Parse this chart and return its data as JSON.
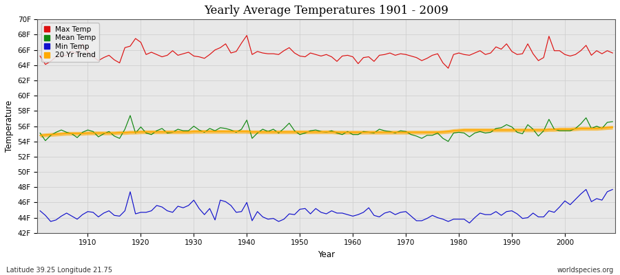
{
  "title": "Yearly Average Temperatures 1901 - 2009",
  "xlabel": "Year",
  "ylabel": "Temperature",
  "lat_lon_label": "Latitude 39.25 Longitude 21.75",
  "source_label": "worldspecies.org",
  "start_year": 1901,
  "end_year": 2009,
  "ylim": [
    42,
    70
  ],
  "yticks": [
    42,
    44,
    46,
    48,
    50,
    52,
    54,
    56,
    58,
    60,
    62,
    64,
    66,
    68,
    70
  ],
  "ytick_labels": [
    "42F",
    "44F",
    "46F",
    "48F",
    "50F",
    "52F",
    "54F",
    "56F",
    "58F",
    "60F",
    "62F",
    "64F",
    "66F",
    "68F",
    "70F"
  ],
  "xticks": [
    1910,
    1920,
    1930,
    1940,
    1950,
    1960,
    1970,
    1980,
    1990,
    2000
  ],
  "plot_bg_color": "#e8e8e8",
  "fig_bg_color": "#ffffff",
  "max_temp_color": "#dd1111",
  "mean_temp_color": "#118811",
  "min_temp_color": "#1111cc",
  "trend_color": "#ffaa00",
  "legend_labels": [
    "Max Temp",
    "Mean Temp",
    "Min Temp",
    "20 Yr Trend"
  ],
  "max_temp": [
    65.2,
    64.1,
    64.5,
    65.1,
    65.2,
    65.3,
    65.8,
    65.5,
    66.8,
    65.7,
    65.1,
    64.6,
    65.0,
    65.3,
    64.7,
    64.3,
    66.3,
    66.5,
    67.5,
    67.0,
    65.4,
    65.7,
    65.4,
    65.1,
    65.3,
    65.9,
    65.3,
    65.5,
    65.7,
    65.2,
    65.1,
    64.9,
    65.4,
    66.0,
    66.3,
    66.8,
    65.6,
    65.8,
    66.9,
    67.9,
    65.4,
    65.8,
    65.6,
    65.5,
    65.5,
    65.4,
    65.9,
    66.3,
    65.6,
    65.2,
    65.1,
    65.6,
    65.4,
    65.2,
    65.4,
    65.1,
    64.5,
    65.2,
    65.3,
    65.1,
    64.2,
    65.0,
    65.1,
    64.5,
    65.3,
    65.4,
    65.6,
    65.3,
    65.5,
    65.4,
    65.2,
    65.0,
    64.6,
    64.9,
    65.3,
    65.5,
    64.3,
    63.6,
    65.4,
    65.6,
    65.4,
    65.3,
    65.6,
    65.9,
    65.4,
    65.6,
    66.4,
    66.1,
    66.8,
    65.8,
    65.4,
    65.5,
    66.8,
    65.5,
    64.6,
    65.0,
    67.8,
    65.9,
    65.9,
    65.4,
    65.2,
    65.4,
    65.9,
    66.6,
    65.3,
    65.9,
    65.5,
    65.9,
    65.6
  ],
  "mean_temp": [
    55.1,
    54.1,
    54.8,
    55.2,
    55.5,
    55.2,
    55.0,
    54.5,
    55.2,
    55.5,
    55.3,
    54.6,
    55.0,
    55.3,
    54.7,
    54.4,
    55.6,
    57.4,
    55.1,
    55.9,
    55.1,
    54.9,
    55.4,
    55.7,
    55.1,
    55.2,
    55.6,
    55.4,
    55.4,
    56.0,
    55.5,
    55.2,
    55.7,
    55.4,
    55.8,
    55.7,
    55.5,
    55.2,
    55.6,
    56.8,
    54.4,
    55.1,
    55.6,
    55.3,
    55.6,
    55.1,
    55.7,
    56.4,
    55.4,
    54.9,
    55.1,
    55.4,
    55.5,
    55.3,
    55.2,
    55.4,
    55.1,
    54.9,
    55.3,
    54.9,
    54.9,
    55.3,
    55.2,
    55.1,
    55.6,
    55.4,
    55.3,
    55.1,
    55.4,
    55.3,
    54.9,
    54.7,
    54.4,
    54.8,
    54.8,
    55.1,
    54.4,
    54.0,
    55.1,
    55.2,
    55.1,
    54.6,
    55.1,
    55.3,
    55.1,
    55.2,
    55.7,
    55.8,
    56.2,
    55.9,
    55.2,
    55.0,
    56.2,
    55.6,
    54.7,
    55.4,
    56.9,
    55.6,
    55.4,
    55.4,
    55.4,
    55.7,
    56.3,
    57.1,
    55.7,
    56.0,
    55.7,
    56.5,
    56.6
  ],
  "min_temp": [
    44.9,
    44.3,
    43.5,
    43.7,
    44.2,
    44.6,
    44.2,
    43.8,
    44.4,
    44.8,
    44.7,
    44.1,
    44.6,
    44.9,
    44.3,
    44.2,
    44.9,
    47.4,
    44.5,
    44.7,
    44.7,
    44.9,
    45.6,
    45.4,
    44.9,
    44.7,
    45.5,
    45.3,
    45.6,
    46.3,
    45.2,
    44.4,
    45.2,
    43.7,
    46.3,
    46.1,
    45.6,
    44.7,
    44.8,
    46.0,
    43.6,
    44.8,
    44.1,
    43.8,
    43.9,
    43.5,
    43.8,
    44.5,
    44.4,
    45.1,
    45.2,
    44.5,
    45.2,
    44.7,
    44.5,
    44.9,
    44.6,
    44.6,
    44.4,
    44.2,
    44.4,
    44.7,
    45.3,
    44.3,
    44.1,
    44.6,
    44.8,
    44.4,
    44.7,
    44.8,
    44.2,
    43.6,
    43.6,
    43.9,
    44.3,
    44.0,
    43.8,
    43.5,
    43.8,
    43.8,
    43.8,
    43.3,
    44.0,
    44.6,
    44.4,
    44.4,
    44.8,
    44.3,
    44.8,
    44.9,
    44.5,
    43.9,
    44.0,
    44.6,
    44.1,
    44.1,
    44.9,
    44.7,
    45.4,
    46.2,
    45.7,
    46.4,
    47.1,
    47.7,
    46.1,
    46.5,
    46.3,
    47.4,
    47.7
  ],
  "trend_values": [
    54.8,
    54.85,
    54.9,
    54.95,
    55.0,
    55.05,
    55.05,
    55.05,
    55.05,
    55.1,
    55.1,
    55.1,
    55.1,
    55.1,
    55.1,
    55.15,
    55.15,
    55.2,
    55.2,
    55.25,
    55.25,
    55.25,
    55.25,
    55.25,
    55.25,
    55.25,
    55.25,
    55.25,
    55.25,
    55.3,
    55.3,
    55.3,
    55.3,
    55.3,
    55.3,
    55.3,
    55.3,
    55.3,
    55.3,
    55.3,
    55.25,
    55.25,
    55.25,
    55.25,
    55.25,
    55.25,
    55.25,
    55.25,
    55.25,
    55.25,
    55.25,
    55.25,
    55.25,
    55.25,
    55.25,
    55.25,
    55.2,
    55.2,
    55.2,
    55.2,
    55.2,
    55.2,
    55.2,
    55.2,
    55.2,
    55.2,
    55.2,
    55.2,
    55.2,
    55.2,
    55.2,
    55.2,
    55.2,
    55.2,
    55.2,
    55.2,
    55.25,
    55.3,
    55.4,
    55.45,
    55.5,
    55.5,
    55.5,
    55.5,
    55.5,
    55.5,
    55.5,
    55.5,
    55.5,
    55.5,
    55.5,
    55.5,
    55.5,
    55.5,
    55.5,
    55.5,
    55.55,
    55.55,
    55.6,
    55.6,
    55.6,
    55.65,
    55.7,
    55.7,
    55.7,
    55.7,
    55.75,
    55.8,
    55.85
  ]
}
